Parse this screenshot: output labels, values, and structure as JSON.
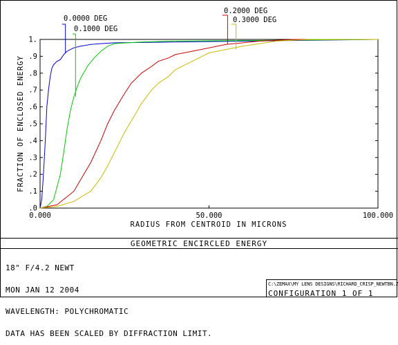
{
  "chart_data": {
    "type": "line",
    "title": "GEOMETRIC ENCIRCLED ENERGY",
    "xlabel": "RADIUS FROM CENTROID IN MICRONS",
    "ylabel": "FRACTION OF ENCLOSED ENERGY",
    "xlim": [
      0,
      100
    ],
    "ylim": [
      0,
      1
    ],
    "x_tick_labels": [
      "0.000",
      "50.000",
      "100.000"
    ],
    "y_tick_labels": [
      ".0",
      ".1",
      ".2",
      ".3",
      ".4",
      ".5",
      ".6",
      ".7",
      ".8",
      ".9",
      "1."
    ],
    "grid": false,
    "series": [
      {
        "name": "0.0000 DEG",
        "color": "#0000cc",
        "x": [
          0,
          0.5,
          1,
          1.6,
          2,
          2.5,
          3,
          3.5,
          4,
          5,
          6,
          7,
          8,
          9,
          10,
          12,
          15,
          18,
          22,
          100
        ],
        "y": [
          0,
          0.05,
          0.2,
          0.42,
          0.6,
          0.7,
          0.78,
          0.83,
          0.85,
          0.87,
          0.88,
          0.91,
          0.93,
          0.94,
          0.95,
          0.96,
          0.97,
          0.975,
          0.98,
          1.0
        ]
      },
      {
        "name": "0.1000 DEG",
        "color": "#00cc00",
        "x": [
          0,
          2,
          4,
          6,
          7,
          8,
          9,
          10,
          11,
          12,
          14,
          16,
          18,
          20,
          22,
          26,
          30,
          40,
          100
        ],
        "y": [
          0,
          0.01,
          0.05,
          0.2,
          0.33,
          0.47,
          0.58,
          0.66,
          0.72,
          0.77,
          0.84,
          0.89,
          0.93,
          0.96,
          0.975,
          0.98,
          0.985,
          0.99,
          1.0
        ]
      },
      {
        "name": "0.2000 DEG",
        "color": "#cc0000",
        "x": [
          0,
          5,
          10,
          15,
          18,
          20,
          22,
          25,
          27,
          30,
          33,
          35,
          38,
          40,
          45,
          50,
          55,
          60,
          65,
          70,
          75,
          100
        ],
        "y": [
          0,
          0.02,
          0.1,
          0.27,
          0.4,
          0.5,
          0.58,
          0.68,
          0.74,
          0.8,
          0.84,
          0.87,
          0.89,
          0.91,
          0.93,
          0.95,
          0.97,
          0.98,
          0.99,
          0.995,
          1.0,
          1.0
        ]
      },
      {
        "name": "0.3000 DEG",
        "color": "#ccbb00",
        "x": [
          0,
          5,
          10,
          15,
          18,
          20,
          22,
          25,
          28,
          30,
          33,
          35,
          38,
          40,
          45,
          50,
          55,
          60,
          65,
          70,
          80,
          100
        ],
        "y": [
          0,
          0.01,
          0.04,
          0.1,
          0.18,
          0.25,
          0.33,
          0.45,
          0.55,
          0.62,
          0.7,
          0.74,
          0.78,
          0.82,
          0.87,
          0.92,
          0.94,
          0.96,
          0.975,
          0.99,
          1.0,
          1.0
        ]
      }
    ],
    "field_markers": [
      {
        "label": "0.0000 DEG",
        "x": 7.5,
        "y_data": 0.92,
        "color": "#0000cc"
      },
      {
        "label": "0.1000 DEG",
        "x": 10.5,
        "y_data": 0.66,
        "color": "#00cc00"
      },
      {
        "label": "0.2000 DEG",
        "x": 55.5,
        "y_data": 0.97,
        "color": "#cc0000"
      },
      {
        "label": "0.3000 DEG",
        "x": 58,
        "y_data": 0.94,
        "color": "#ccbb00"
      }
    ]
  },
  "info": {
    "lines": [
      "18\" F/4.2 NEWT",
      "MON JAN 12 2004",
      "WAVELENGTH: POLYCHROMATIC",
      "DATA HAS BEEN SCALED BY DIFFRACTION LIMIT."
    ],
    "file_path": "C:\\ZEMAX\\MY LENS DESIGNS\\RICHARD_CRISP_NEWTBN.ZMX",
    "configuration": "CONFIGURATION  1  OF  1"
  }
}
